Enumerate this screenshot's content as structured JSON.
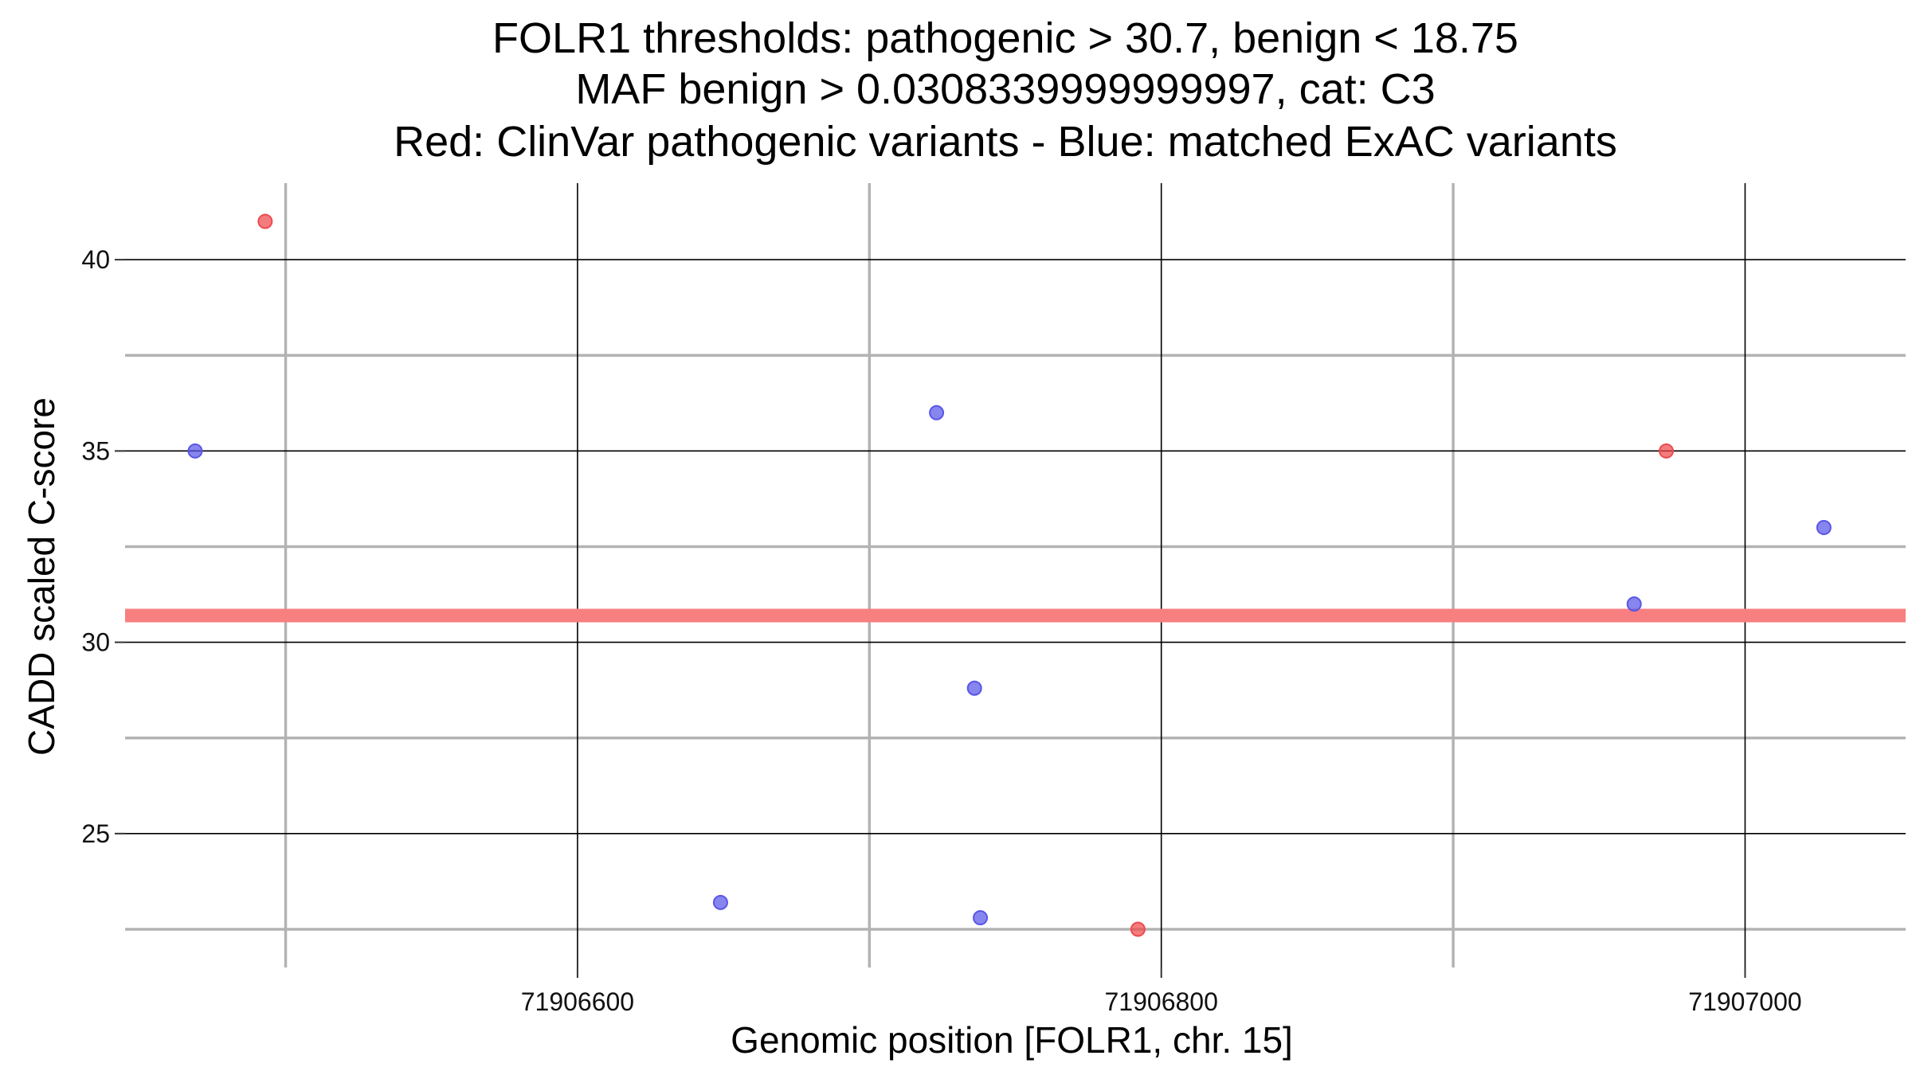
{
  "chart_data": {
    "type": "scatter",
    "title_lines": [
      "FOLR1 thresholds: pathogenic > 30.7, benign < 18.75",
      "MAF benign > 0.0308339999999997, cat: C3",
      "Red: ClinVar pathogenic variants - Blue: matched ExAC variants"
    ],
    "xlabel": "Genomic position [FOLR1, chr. 15]",
    "ylabel": "CADD scaled C-score",
    "xlim": [
      71906445,
      71907055
    ],
    "ylim": [
      21.5,
      42
    ],
    "x_major_ticks": [
      71906600,
      71906800,
      71907000
    ],
    "x_tick_labels": [
      "71906600",
      "71906800",
      "71907000"
    ],
    "x_minor_ticks": [
      71906500,
      71906700,
      71906900
    ],
    "y_major_ticks": [
      25,
      30,
      35,
      40
    ],
    "y_tick_labels": [
      "25",
      "30",
      "35",
      "40"
    ],
    "y_minor_ticks": [
      22.5,
      27.5,
      32.5,
      37.5
    ],
    "grid": true,
    "threshold_line": {
      "y": 30.7,
      "color": "#f87f80"
    },
    "colors": {
      "pathogenic": "#ee4a4c",
      "benign": "#5956e8",
      "major_grid": "#000000",
      "minor_grid": "#b3b3b3"
    },
    "series": [
      {
        "key": "pathogenic",
        "points": [
          {
            "x": 71906493,
            "y": 41.0
          },
          {
            "x": 71906792,
            "y": 22.5
          },
          {
            "x": 71906973,
            "y": 35.0
          }
        ]
      },
      {
        "key": "benign",
        "points": [
          {
            "x": 71906469,
            "y": 35.0
          },
          {
            "x": 71906649,
            "y": 23.2
          },
          {
            "x": 71906723,
            "y": 36.0
          },
          {
            "x": 71906736,
            "y": 28.8
          },
          {
            "x": 71906738,
            "y": 22.8
          },
          {
            "x": 71906962,
            "y": 31.0
          },
          {
            "x": 71907027,
            "y": 33.0
          }
        ]
      }
    ]
  }
}
